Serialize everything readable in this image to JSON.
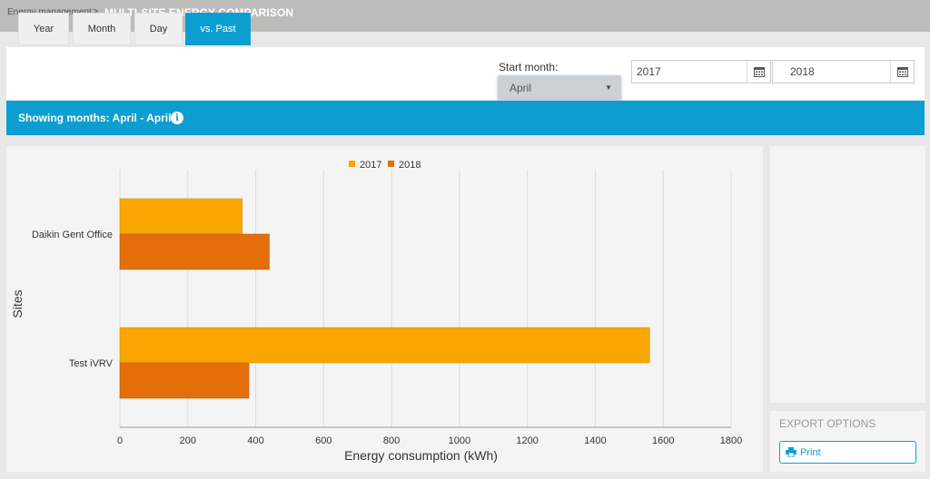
{
  "header": {
    "breadcrumb": "Energy management",
    "separator": ">",
    "title": "MULTI-SITE ENERGY COMPARISON"
  },
  "tabs": [
    {
      "label": "Year",
      "active": false
    },
    {
      "label": "Month",
      "active": false
    },
    {
      "label": "Day",
      "active": false
    },
    {
      "label": "vs. Past",
      "active": true
    }
  ],
  "start_month": {
    "label": "Start month:",
    "value": "April"
  },
  "dates": {
    "from": "2017",
    "to": "2018"
  },
  "banner": {
    "text": "Showing months: April - April"
  },
  "export": {
    "title": "EXPORT OPTIONS",
    "print_label": "Print"
  },
  "colors": {
    "accent": "#0d9ed1",
    "series_2017": "#f9a602",
    "series_2018": "#e46f0a"
  },
  "chart_data": {
    "type": "bar",
    "orientation": "horizontal",
    "categories": [
      "Daikin Gent Office",
      "Test iVRV"
    ],
    "series": [
      {
        "name": "2017",
        "values": [
          360,
          1560
        ]
      },
      {
        "name": "2018",
        "values": [
          440,
          380
        ]
      }
    ],
    "xlabel": "Energy consumption (kWh)",
    "ylabel": "Sites",
    "xlim": [
      0,
      1800
    ],
    "xticks": [
      0,
      200,
      400,
      600,
      800,
      1000,
      1200,
      1400,
      1600,
      1800
    ],
    "grid": true,
    "legend_position": "top-center"
  }
}
